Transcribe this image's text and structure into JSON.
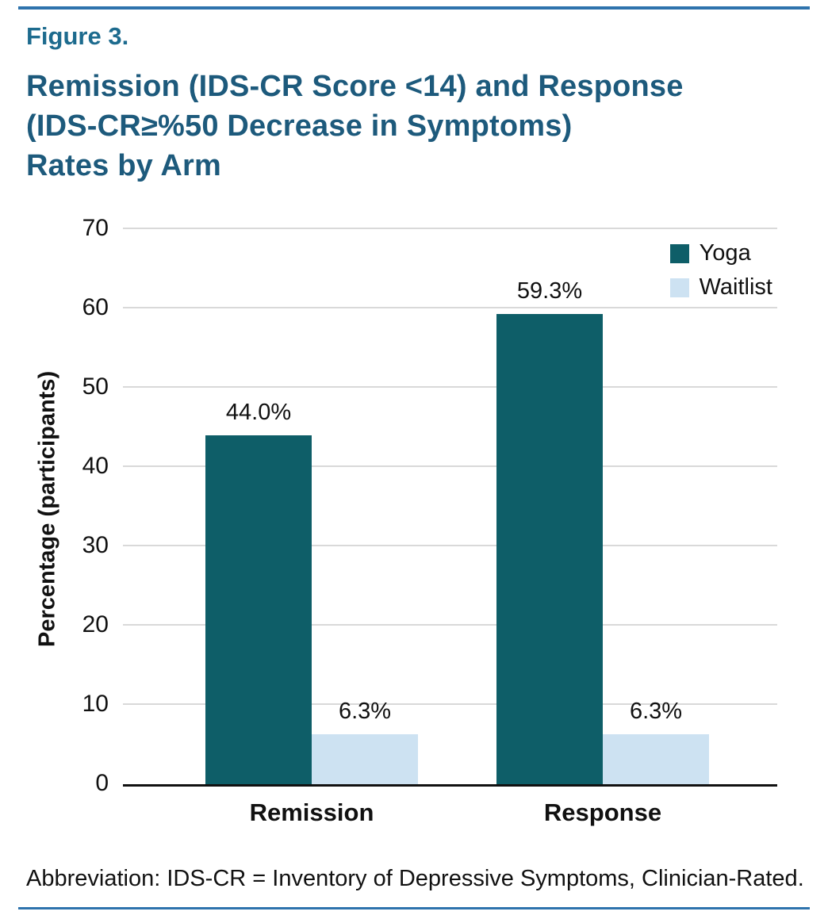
{
  "figure": {
    "label": "Figure 3.",
    "title": "Remission (IDS-CR Score <14) and Response\n(IDS-CR≥%50 Decrease in Symptoms)\nRates by Arm",
    "footnote": "Abbreviation: IDS-CR = Inventory of Depressive Symptoms, Clinician-Rated."
  },
  "accent_colors": {
    "rule_blue": "#2e73ad",
    "title_blue": "#1d5a7c"
  },
  "chart_data": {
    "type": "bar",
    "title": "Remission (IDS-CR Score <14) and Response (IDS-CR≥%50 Decrease in Symptoms) Rates by Arm",
    "categories": [
      "Remission",
      "Response"
    ],
    "series": [
      {
        "name": "Yoga",
        "color": "#0e5e68",
        "values": [
          44.0,
          59.3
        ]
      },
      {
        "name": "Waitlist",
        "color": "#cde2f2",
        "values": [
          6.3,
          6.3
        ]
      }
    ],
    "value_labels": [
      [
        "44.0%",
        "59.3%"
      ],
      [
        "6.3%",
        "6.3%"
      ]
    ],
    "xlabel": "",
    "ylabel": "Percentage (participants)",
    "ylim": [
      0,
      70
    ],
    "ytick_step": 10,
    "grid": true,
    "gridline_color": "#d9d9d9",
    "legend_position": "top-right"
  }
}
